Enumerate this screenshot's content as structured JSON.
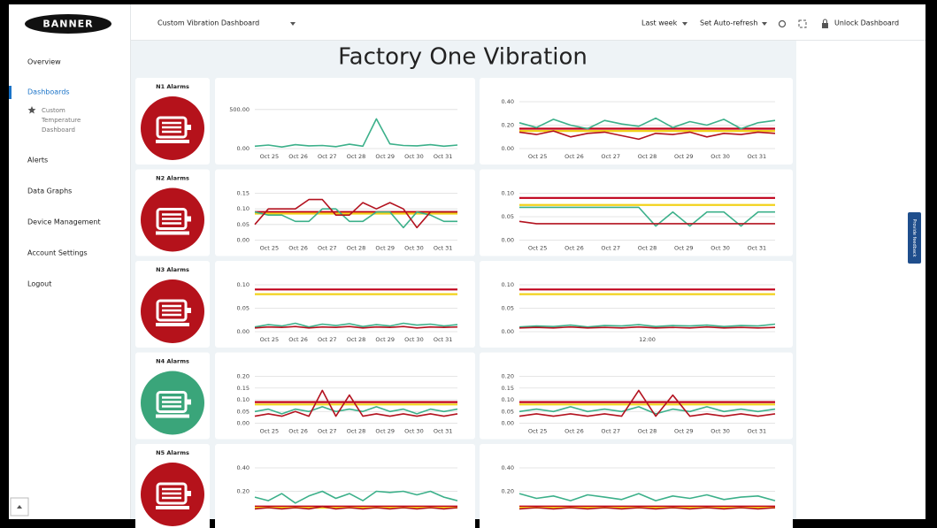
{
  "logo": "BANNER",
  "header": {
    "dashboard_name": "Custom Vibration Dashboard",
    "time_range": "Last week",
    "auto_refresh": "Set Auto-refresh",
    "unlock": "Unlock Dashboard"
  },
  "nav": {
    "top": [
      "Overview",
      "Dashboards"
    ],
    "active": 1,
    "sub": [
      "Custom",
      "Temperature",
      "Dashboard"
    ],
    "bottom": [
      "Alerts",
      "Data Graphs",
      "Device Management",
      "Account Settings",
      "Logout"
    ]
  },
  "feedback": "Provide feedback",
  "title": "Factory One Vibration",
  "panels": [
    {
      "alarm": "N1 Alarms",
      "icon_color": "#b5121b",
      "charts": [
        {
          "ylim": [
            0,
            600
          ],
          "yticks": [
            {
              "value": 500,
              "label": "500.00"
            },
            {
              "value": 0,
              "label": "0.00"
            }
          ],
          "xticks": [
            "Oct 25",
            "Oct 26",
            "Oct 27",
            "Oct 28",
            "Oct 29",
            "Oct 30",
            "Oct 31"
          ],
          "thresholds": [],
          "series": [
            {
              "color": "#3cb08a",
              "values": [
                30,
                45,
                20,
                50,
                35,
                40,
                25,
                55,
                30,
                380,
                60,
                40,
                35,
                50,
                30,
                45
              ]
            }
          ]
        },
        {
          "ylim": [
            0,
            0.4
          ],
          "yticks": [
            {
              "value": 0.4,
              "label": "0.40"
            },
            {
              "value": 0.2,
              "label": "0.20"
            },
            {
              "value": 0,
              "label": "0.00"
            }
          ],
          "xticks": [
            "Oct 25",
            "Oct 26",
            "Oct 27",
            "Oct 28",
            "Oct 29",
            "Oct 30",
            "Oct 31"
          ],
          "thresholds": [
            {
              "color": "#c0001a",
              "value": 0.17
            },
            {
              "color": "#f2d21b",
              "value": 0.15
            }
          ],
          "series": [
            {
              "color": "#3cb08a",
              "values": [
                0.22,
                0.18,
                0.25,
                0.2,
                0.17,
                0.24,
                0.21,
                0.19,
                0.26,
                0.18,
                0.23,
                0.2,
                0.25,
                0.17,
                0.22,
                0.24
              ]
            },
            {
              "color": "#b3121f",
              "values": [
                0.14,
                0.12,
                0.15,
                0.1,
                0.13,
                0.14,
                0.11,
                0.08,
                0.13,
                0.12,
                0.14,
                0.1,
                0.13,
                0.12,
                0.14,
                0.13
              ]
            }
          ]
        }
      ]
    },
    {
      "alarm": "N2 Alarms",
      "icon_color": "#b5121b",
      "charts": [
        {
          "ylim": [
            0,
            0.15
          ],
          "yticks": [
            {
              "value": 0.15,
              "label": "0.15"
            },
            {
              "value": 0.1,
              "label": "0.10"
            },
            {
              "value": 0.05,
              "label": "0.05"
            },
            {
              "value": 0,
              "label": "0.00"
            }
          ],
          "xticks": [
            "Oct 25",
            "Oct 26",
            "Oct 27",
            "Oct 28",
            "Oct 29",
            "Oct 30",
            "Oct 31"
          ],
          "thresholds": [
            {
              "color": "#c0001a",
              "value": 0.09
            },
            {
              "color": "#f2d21b",
              "value": 0.085
            }
          ],
          "series": [
            {
              "color": "#3cb08a",
              "values": [
                0.09,
                0.08,
                0.08,
                0.06,
                0.06,
                0.1,
                0.1,
                0.06,
                0.06,
                0.09,
                0.09,
                0.04,
                0.09,
                0.08,
                0.06,
                0.06
              ]
            },
            {
              "color": "#b3121f",
              "values": [
                0.05,
                0.1,
                0.1,
                0.1,
                0.13,
                0.13,
                0.08,
                0.08,
                0.12,
                0.1,
                0.12,
                0.1,
                0.04,
                0.09,
                0.09,
                0.09
              ]
            }
          ]
        },
        {
          "ylim": [
            0,
            0.1
          ],
          "yticks": [
            {
              "value": 0.1,
              "label": "0.10"
            },
            {
              "value": 0.05,
              "label": "0.05"
            },
            {
              "value": 0,
              "label": "0.00"
            }
          ],
          "xticks": [
            "Oct 25",
            "Oct 26",
            "Oct 27",
            "Oct 28",
            "Oct 29",
            "Oct 30",
            "Oct 31"
          ],
          "thresholds": [
            {
              "color": "#c0001a",
              "value": 0.09
            },
            {
              "color": "#f2d21b",
              "value": 0.075
            }
          ],
          "series": [
            {
              "color": "#3cb08a",
              "values": [
                0.07,
                0.07,
                0.07,
                0.07,
                0.07,
                0.07,
                0.07,
                0.07,
                0.03,
                0.06,
                0.03,
                0.06,
                0.06,
                0.03,
                0.06,
                0.06
              ]
            },
            {
              "color": "#b3121f",
              "values": [
                0.04,
                0.035,
                0.035,
                0.035,
                0.035,
                0.035,
                0.035,
                0.035,
                0.035,
                0.035,
                0.035,
                0.035,
                0.035,
                0.035,
                0.035,
                0.035
              ]
            }
          ]
        }
      ]
    },
    {
      "alarm": "N3 Alarms",
      "icon_color": "#b5121b",
      "charts": [
        {
          "ylim": [
            0,
            0.1
          ],
          "yticks": [
            {
              "value": 0.1,
              "label": "0.10"
            },
            {
              "value": 0.05,
              "label": "0.05"
            },
            {
              "value": 0,
              "label": "0.00"
            }
          ],
          "xticks": [
            "Oct 25",
            "Oct 26",
            "Oct 27",
            "Oct 28",
            "Oct 29",
            "Oct 30",
            "Oct 31"
          ],
          "thresholds": [
            {
              "color": "#c0001a",
              "value": 0.09
            },
            {
              "color": "#f2d21b",
              "value": 0.08
            }
          ],
          "series": [
            {
              "color": "#3cb08a",
              "values": [
                0.01,
                0.015,
                0.012,
                0.018,
                0.01,
                0.016,
                0.013,
                0.017,
                0.011,
                0.015,
                0.012,
                0.018,
                0.014,
                0.016,
                0.012,
                0.015
              ]
            },
            {
              "color": "#b3121f",
              "values": [
                0.008,
                0.01,
                0.009,
                0.011,
                0.008,
                0.01,
                0.009,
                0.011,
                0.008,
                0.01,
                0.009,
                0.011,
                0.008,
                0.01,
                0.009,
                0.01
              ]
            }
          ]
        },
        {
          "ylim": [
            0,
            0.1
          ],
          "yticks": [
            {
              "value": 0.1,
              "label": "0.10"
            },
            {
              "value": 0.05,
              "label": "0.05"
            },
            {
              "value": 0,
              "label": "0.00"
            }
          ],
          "xticks": [
            "12:00"
          ],
          "thresholds": [
            {
              "color": "#c0001a",
              "value": 0.09
            },
            {
              "color": "#f2d21b",
              "value": 0.08
            }
          ],
          "series": [
            {
              "color": "#3cb08a",
              "values": [
                0.01,
                0.012,
                0.011,
                0.014,
                0.01,
                0.013,
                0.012,
                0.015,
                0.011,
                0.013,
                0.012,
                0.014,
                0.011,
                0.013,
                0.012,
                0.016
              ]
            },
            {
              "color": "#b3121f",
              "values": [
                0.008,
                0.009,
                0.008,
                0.01,
                0.008,
                0.009,
                0.008,
                0.01,
                0.008,
                0.009,
                0.008,
                0.01,
                0.008,
                0.009,
                0.008,
                0.009
              ]
            }
          ]
        }
      ]
    },
    {
      "alarm": "N4 Alarms",
      "icon_color": "#3aa57a",
      "charts": [
        {
          "ylim": [
            0,
            0.2
          ],
          "yticks": [
            {
              "value": 0.2,
              "label": "0.20"
            },
            {
              "value": 0.15,
              "label": "0.15"
            },
            {
              "value": 0.1,
              "label": "0.10"
            },
            {
              "value": 0.05,
              "label": "0.05"
            },
            {
              "value": 0,
              "label": "0.00"
            }
          ],
          "xticks": [
            "Oct 25",
            "Oct 26",
            "Oct 27",
            "Oct 28",
            "Oct 29",
            "Oct 30",
            "Oct 31"
          ],
          "thresholds": [
            {
              "color": "#c0001a",
              "value": 0.09
            },
            {
              "color": "#f2d21b",
              "value": 0.08
            }
          ],
          "series": [
            {
              "color": "#3cb08a",
              "values": [
                0.05,
                0.06,
                0.04,
                0.06,
                0.05,
                0.07,
                0.05,
                0.06,
                0.05,
                0.07,
                0.05,
                0.06,
                0.04,
                0.06,
                0.05,
                0.06
              ]
            },
            {
              "color": "#b3121f",
              "values": [
                0.03,
                0.04,
                0.03,
                0.05,
                0.03,
                0.14,
                0.03,
                0.12,
                0.03,
                0.04,
                0.03,
                0.04,
                0.03,
                0.04,
                0.03,
                0.04
              ]
            }
          ]
        },
        {
          "ylim": [
            0,
            0.2
          ],
          "yticks": [
            {
              "value": 0.2,
              "label": "0.20"
            },
            {
              "value": 0.15,
              "label": "0.15"
            },
            {
              "value": 0.1,
              "label": "0.10"
            },
            {
              "value": 0.05,
              "label": "0.05"
            },
            {
              "value": 0,
              "label": "0.00"
            }
          ],
          "xticks": [
            "Oct 25",
            "Oct 26",
            "Oct 27",
            "Oct 28",
            "Oct 29",
            "Oct 30",
            "Oct 31"
          ],
          "thresholds": [
            {
              "color": "#c0001a",
              "value": 0.09
            },
            {
              "color": "#f2d21b",
              "value": 0.08
            }
          ],
          "series": [
            {
              "color": "#3cb08a",
              "values": [
                0.05,
                0.06,
                0.05,
                0.07,
                0.05,
                0.06,
                0.05,
                0.07,
                0.04,
                0.06,
                0.05,
                0.07,
                0.05,
                0.06,
                0.05,
                0.06
              ]
            },
            {
              "color": "#b3121f",
              "values": [
                0.03,
                0.04,
                0.03,
                0.04,
                0.03,
                0.04,
                0.03,
                0.14,
                0.03,
                0.12,
                0.03,
                0.04,
                0.03,
                0.04,
                0.03,
                0.04
              ]
            }
          ]
        }
      ]
    },
    {
      "alarm": "N5 Alarms",
      "icon_color": "#b5121b",
      "charts": [
        {
          "ylim": [
            0,
            0.4
          ],
          "yticks": [
            {
              "value": 0.4,
              "label": "0.40"
            },
            {
              "value": 0.2,
              "label": "0.20"
            }
          ],
          "thresholds": [
            {
              "color": "#c0001a",
              "value": 0.07
            },
            {
              "color": "#f2d21b",
              "value": 0.06
            }
          ],
          "series": [
            {
              "color": "#3cb08a",
              "values": [
                0.15,
                0.12,
                0.18,
                0.1,
                0.16,
                0.2,
                0.14,
                0.18,
                0.12,
                0.2,
                0.19,
                0.2,
                0.17,
                0.2,
                0.15,
                0.12
              ]
            },
            {
              "color": "#b3121f",
              "values": [
                0.05,
                0.06,
                0.05,
                0.06,
                0.05,
                0.07,
                0.05,
                0.06,
                0.05,
                0.06,
                0.05,
                0.06,
                0.05,
                0.06,
                0.05,
                0.06
              ]
            }
          ]
        },
        {
          "ylim": [
            0,
            0.4
          ],
          "yticks": [
            {
              "value": 0.4,
              "label": "0.40"
            },
            {
              "value": 0.2,
              "label": "0.20"
            }
          ],
          "thresholds": [
            {
              "color": "#c0001a",
              "value": 0.07
            },
            {
              "color": "#f2d21b",
              "value": 0.06
            }
          ],
          "series": [
            {
              "color": "#3cb08a",
              "values": [
                0.18,
                0.14,
                0.16,
                0.12,
                0.17,
                0.15,
                0.13,
                0.18,
                0.12,
                0.16,
                0.14,
                0.17,
                0.13,
                0.15,
                0.16,
                0.12
              ]
            },
            {
              "color": "#b3121f",
              "values": [
                0.05,
                0.06,
                0.05,
                0.06,
                0.05,
                0.06,
                0.05,
                0.06,
                0.05,
                0.06,
                0.05,
                0.06,
                0.05,
                0.06,
                0.05,
                0.06
              ]
            }
          ]
        }
      ]
    }
  ]
}
